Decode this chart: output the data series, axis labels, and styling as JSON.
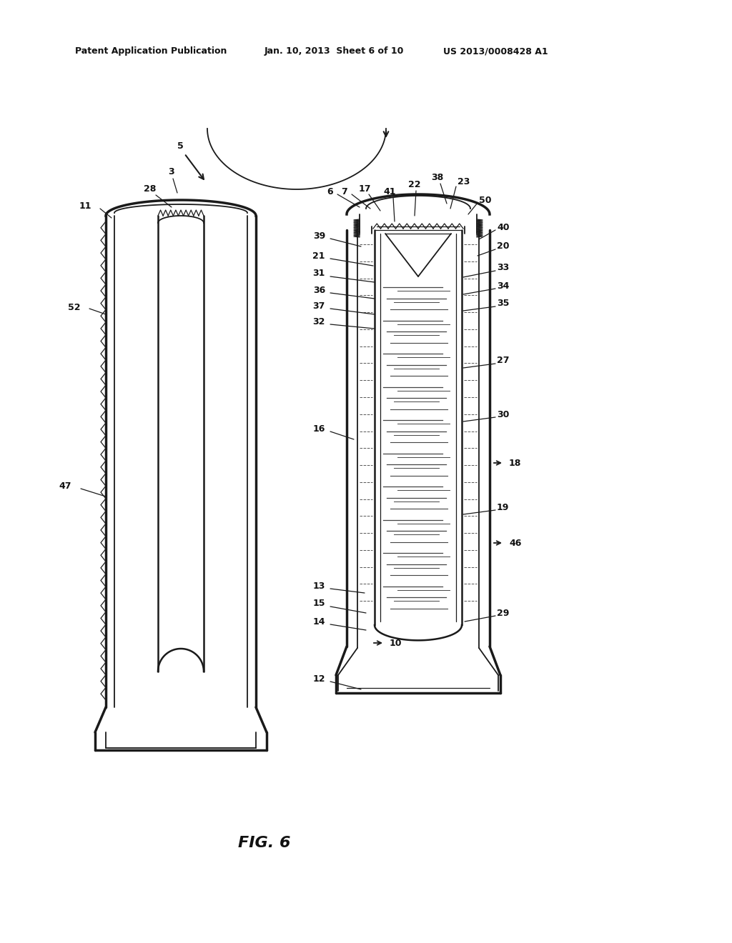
{
  "title": "FIG. 6",
  "header_left": "Patent Application Publication",
  "header_mid": "Jan. 10, 2013  Sheet 6 of 10",
  "header_right": "US 2013/0008428 A1",
  "bg_color": "#ffffff",
  "line_color": "#1a1a1a",
  "label_color": "#111111",
  "font_size_header": 9,
  "font_size_label": 9,
  "font_size_title": 16
}
